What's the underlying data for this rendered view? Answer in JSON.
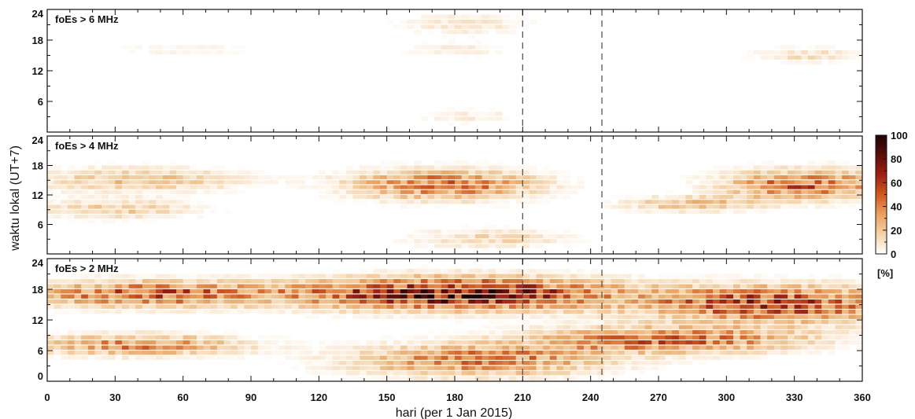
{
  "chart_data": {
    "type": "heatmap",
    "xlabel": "hari (per 1 Jan 2015)",
    "ylabel": "waktu lokal (UT+7)",
    "xlim": [
      0,
      360
    ],
    "x_ticks": [
      "0",
      "30",
      "60",
      "90",
      "120",
      "150",
      "180",
      "210",
      "240",
      "270",
      "300",
      "330",
      "360"
    ],
    "ylim": [
      0,
      24
    ],
    "vertical_markers": [
      210,
      245
    ],
    "panels": [
      {
        "label": "foEs > 6 MHz",
        "y_ticks": [
          "6",
          "12",
          "18",
          "24"
        ],
        "features": [
          {
            "day_center": 185,
            "day_width": 55,
            "hour_center": 21,
            "hour_width": 4,
            "peak_pct": 14
          },
          {
            "day_center": 180,
            "day_width": 45,
            "hour_center": 16,
            "hour_width": 3,
            "peak_pct": 10
          },
          {
            "day_center": 185,
            "day_width": 50,
            "hour_center": 3,
            "hour_width": 3,
            "peak_pct": 10
          },
          {
            "day_center": 60,
            "day_width": 70,
            "hour_center": 16,
            "hour_width": 3,
            "peak_pct": 7
          },
          {
            "day_center": 335,
            "day_width": 45,
            "hour_center": 15,
            "hour_width": 3,
            "peak_pct": 15
          }
        ]
      },
      {
        "label": "foEs > 4 MHz",
        "y_ticks": [
          "6",
          "12",
          "18",
          "24"
        ],
        "features": [
          {
            "day_center": 175,
            "day_width": 80,
            "hour_center": 14,
            "hour_width": 6,
            "peak_pct": 48
          },
          {
            "day_center": 40,
            "day_width": 90,
            "hour_center": 15,
            "hour_width": 5,
            "peak_pct": 25
          },
          {
            "day_center": 30,
            "day_width": 70,
            "hour_center": 9,
            "hour_width": 4,
            "peak_pct": 22
          },
          {
            "day_center": 335,
            "day_width": 70,
            "hour_center": 14,
            "hour_width": 6,
            "peak_pct": 50
          },
          {
            "day_center": 285,
            "day_width": 60,
            "hour_center": 10,
            "hour_width": 3,
            "peak_pct": 28
          },
          {
            "day_center": 195,
            "day_width": 70,
            "hour_center": 3,
            "hour_width": 4,
            "peak_pct": 18
          }
        ]
      },
      {
        "label": "foEs > 2 MHz",
        "y_ticks": [
          "0",
          "6",
          "12",
          "18",
          "24"
        ],
        "features": [
          {
            "day_center": 180,
            "day_width": 130,
            "hour_center": 17,
            "hour_width": 6,
            "peak_pct": 85
          },
          {
            "day_center": 45,
            "day_width": 110,
            "hour_center": 17,
            "hour_width": 5,
            "peak_pct": 52
          },
          {
            "day_center": 320,
            "day_width": 110,
            "hour_center": 15,
            "hour_width": 7,
            "peak_pct": 62
          },
          {
            "day_center": 275,
            "day_width": 120,
            "hour_center": 8,
            "hour_width": 5,
            "peak_pct": 48
          },
          {
            "day_center": 40,
            "day_width": 90,
            "hour_center": 7,
            "hour_width": 4,
            "peak_pct": 42
          },
          {
            "day_center": 190,
            "day_width": 110,
            "hour_center": 4,
            "hour_width": 6,
            "peak_pct": 45
          }
        ]
      }
    ],
    "colorbar": {
      "ticks": [
        "100",
        "80",
        "60",
        "40",
        "20",
        "0"
      ],
      "unit": "[%]",
      "range": [
        0,
        100
      ],
      "colors": [
        "#ffffff",
        "#f6d2a6",
        "#eaa15e",
        "#d2581f",
        "#9e1f13",
        "#5c0d08",
        "#1c0402"
      ]
    }
  }
}
